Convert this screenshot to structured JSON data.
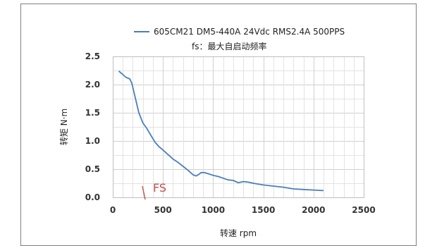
{
  "chart_data": {
    "type": "line",
    "series": [
      {
        "name": "605CM21 DM5-440A 24Vdc RMS2.4A 500PPS",
        "color": "#4a7ebb",
        "x": [
          60,
          100,
          130,
          170,
          190,
          220,
          260,
          300,
          340,
          380,
          420,
          460,
          500,
          550,
          600,
          650,
          700,
          750,
          800,
          830,
          860,
          880,
          910,
          950,
          1000,
          1050,
          1100,
          1150,
          1200,
          1250,
          1300,
          1350,
          1400,
          1500,
          1600,
          1700,
          1800,
          1900,
          2000,
          2100
        ],
        "y": [
          2.24,
          2.18,
          2.13,
          2.1,
          2.02,
          1.8,
          1.5,
          1.32,
          1.22,
          1.1,
          0.98,
          0.9,
          0.84,
          0.76,
          0.68,
          0.62,
          0.55,
          0.48,
          0.4,
          0.38,
          0.41,
          0.44,
          0.44,
          0.42,
          0.39,
          0.37,
          0.34,
          0.31,
          0.3,
          0.26,
          0.28,
          0.27,
          0.25,
          0.22,
          0.2,
          0.18,
          0.15,
          0.14,
          0.13,
          0.12
        ]
      }
    ],
    "annotation": {
      "text": "FS",
      "color": "#c0504d"
    },
    "note": "fs：最大自启动频率",
    "xlabel": "转速 rpm",
    "ylabel": "转矩 N·m",
    "xlim": [
      0,
      2500
    ],
    "ylim": [
      0,
      2.5
    ],
    "xticks": [
      "0",
      "500",
      "1000",
      "1500",
      "2000",
      "2500"
    ],
    "yticks": [
      "0.0",
      "0.5",
      "1.0",
      "1.5",
      "2.0",
      "2.5"
    ],
    "grid": true,
    "legend_position": "top-right"
  }
}
